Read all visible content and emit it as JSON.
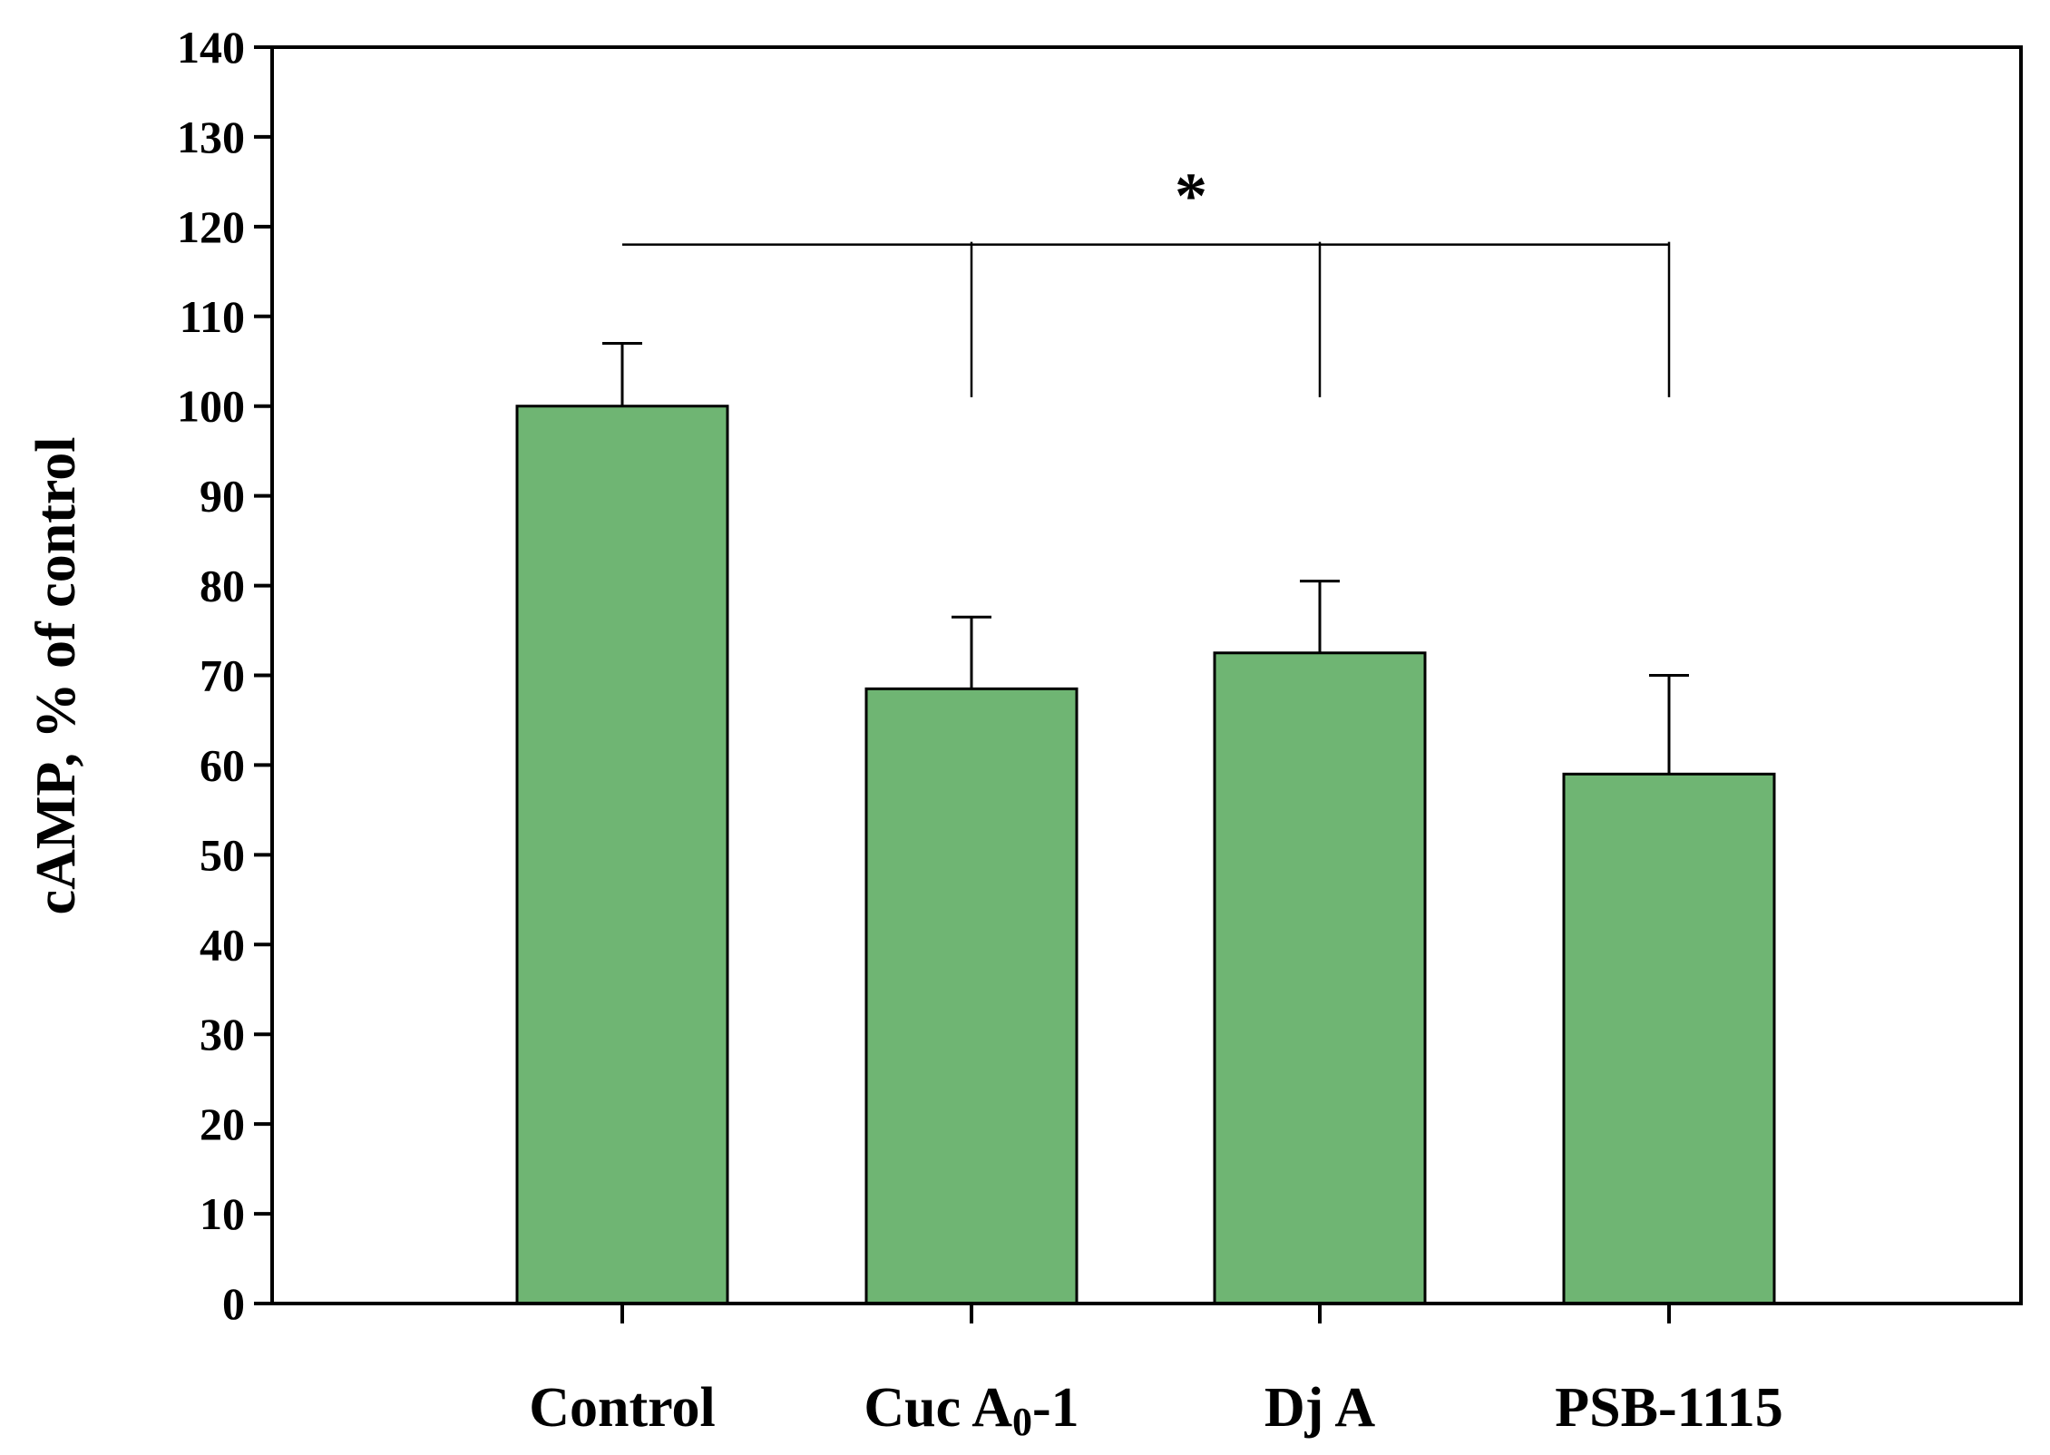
{
  "chart_data": {
    "type": "bar",
    "title": "",
    "xlabel": "",
    "ylabel": "cAMP, % of control",
    "ylim": [
      0,
      140
    ],
    "ytick_step": 10,
    "grid": false,
    "legend": "none",
    "bar_color": "#6fb573",
    "categories": [
      {
        "main": "Control",
        "sub": "",
        "tail": ""
      },
      {
        "main": "Cuc A",
        "sub": "0",
        "tail": "-1"
      },
      {
        "main": "Dj A",
        "sub": "",
        "tail": ""
      },
      {
        "main": "PSB-1115",
        "sub": "",
        "tail": ""
      }
    ],
    "values": [
      100,
      68.5,
      72.5,
      59
    ],
    "errors": [
      7,
      8,
      8,
      11
    ],
    "significance": {
      "marker": "*",
      "line_value": 118,
      "drop_to_value": 101
    }
  }
}
